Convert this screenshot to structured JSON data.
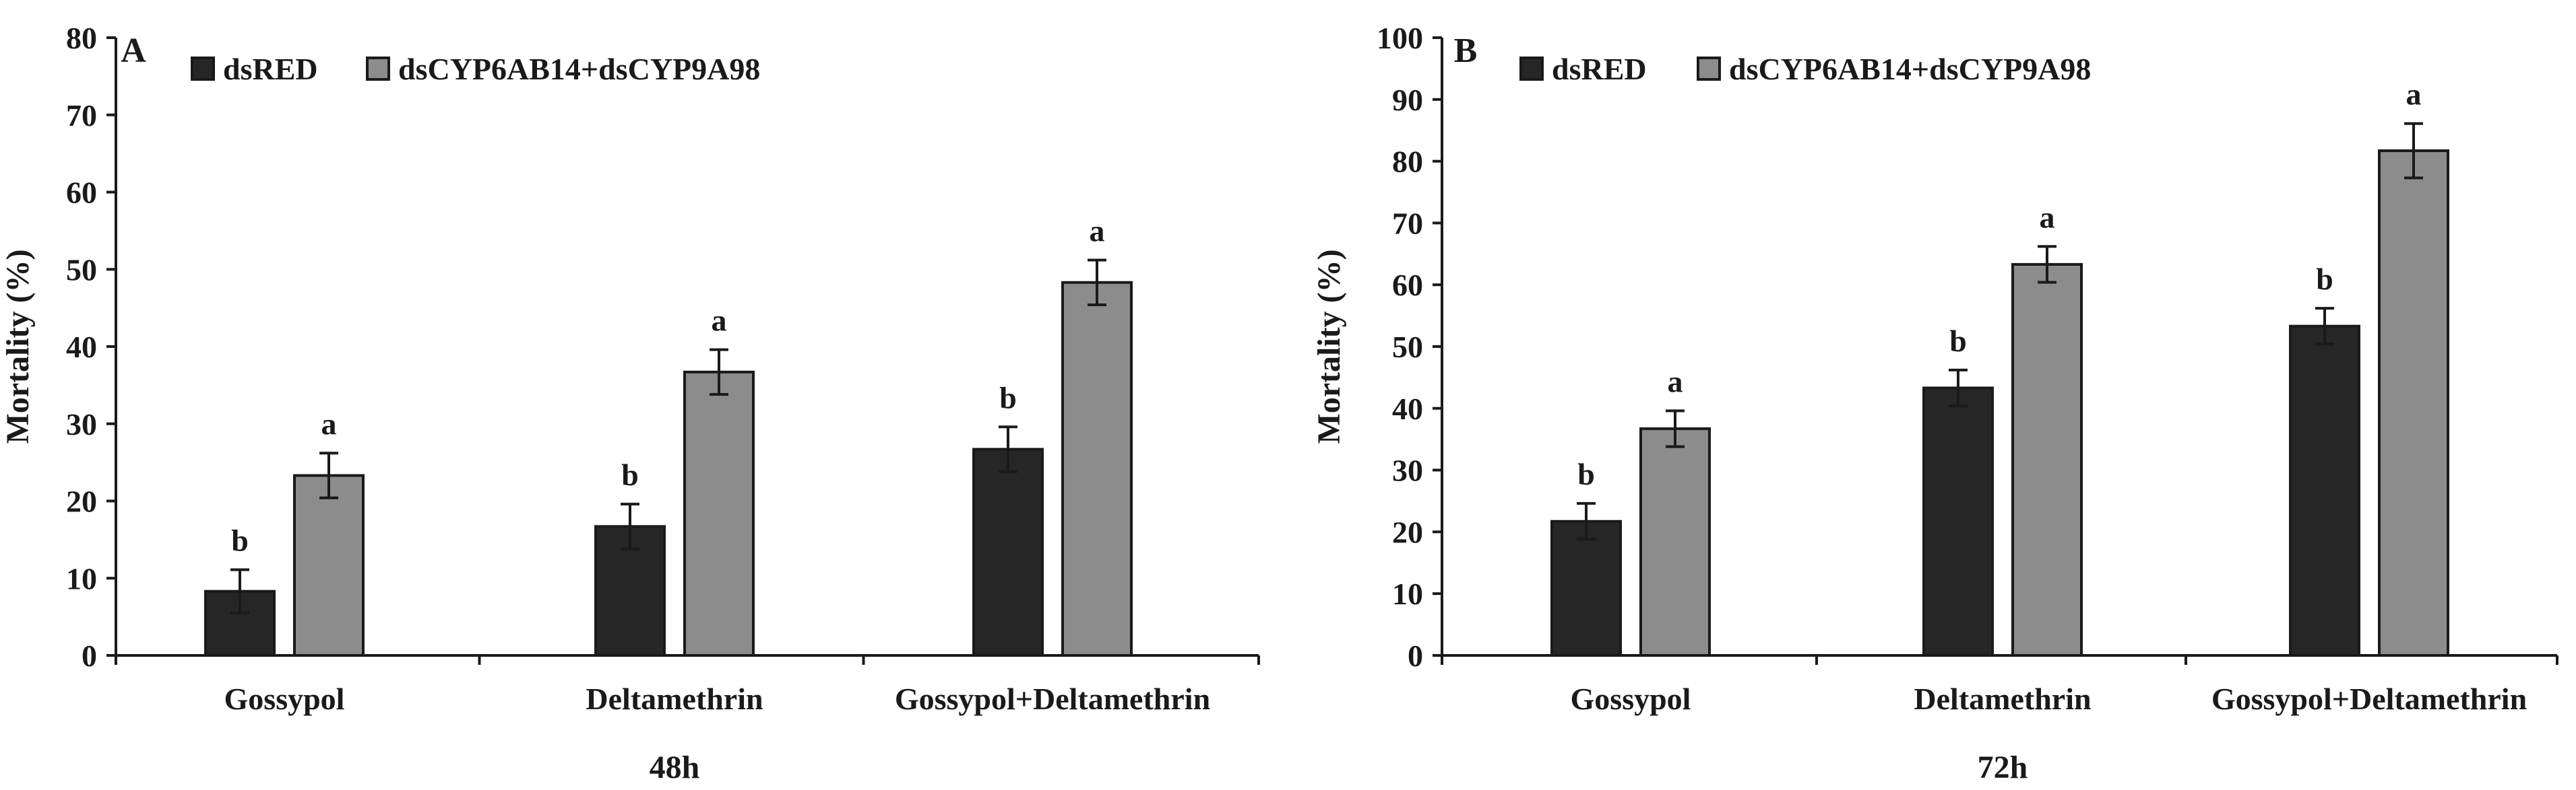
{
  "chart_data": [
    {
      "type": "bar",
      "panel": "A",
      "xlabel": "48h",
      "ylabel": "Mortality (%)",
      "ylim": [
        0,
        80
      ],
      "yticks": [
        0,
        10,
        20,
        30,
        40,
        50,
        60,
        70,
        80
      ],
      "categories": [
        "Gossypol",
        "Deltamethrin",
        "Gossypol+Deltamethrin"
      ],
      "series": [
        {
          "name": "dsRED",
          "color": "#262626",
          "values": [
            8.3,
            16.7,
            26.7
          ],
          "errors": [
            2.8,
            2.9,
            2.9
          ],
          "letters": [
            "b",
            "b",
            "b"
          ]
        },
        {
          "name": "dsCYP6AB14+dsCYP9A98",
          "color": "#8c8c8c",
          "values": [
            23.3,
            36.7,
            48.3
          ],
          "errors": [
            2.9,
            2.9,
            2.9
          ],
          "letters": [
            "a",
            "a",
            "a"
          ]
        }
      ]
    },
    {
      "type": "bar",
      "panel": "B",
      "xlabel": "72h",
      "ylabel": "Mortality (%)",
      "ylim": [
        0,
        100
      ],
      "yticks": [
        0,
        10,
        20,
        30,
        40,
        50,
        60,
        70,
        80,
        90,
        100
      ],
      "categories": [
        "Gossypol",
        "Deltamethrin",
        "Gossypol+Deltamethrin"
      ],
      "series": [
        {
          "name": "dsRED",
          "color": "#262626",
          "values": [
            21.7,
            43.3,
            53.3
          ],
          "errors": [
            2.9,
            2.9,
            2.9
          ],
          "letters": [
            "b",
            "b",
            "b"
          ]
        },
        {
          "name": "dsCYP6AB14+dsCYP9A98",
          "color": "#8c8c8c",
          "values": [
            36.7,
            63.3,
            81.7
          ],
          "errors": [
            2.9,
            2.9,
            4.4
          ],
          "letters": [
            "a",
            "a",
            "a"
          ]
        }
      ]
    }
  ]
}
